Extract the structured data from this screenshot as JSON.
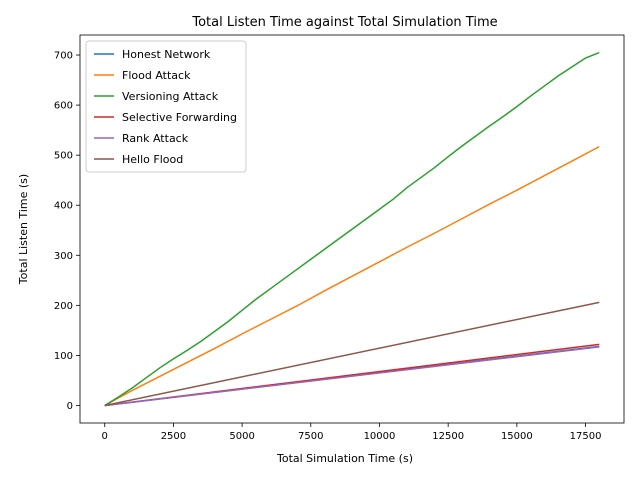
{
  "chart_data": {
    "type": "line",
    "title": "Total Listen Time against Total Simulation Time",
    "xlabel": "Total Simulation Time (s)",
    "ylabel": "Total Listen Time (s)",
    "xlim": [
      -900,
      18900
    ],
    "ylim": [
      -35,
      740
    ],
    "xticks": [
      0,
      2500,
      5000,
      7500,
      10000,
      12500,
      15000,
      17500
    ],
    "yticks": [
      0,
      100,
      200,
      300,
      400,
      500,
      600,
      700
    ],
    "legend_position": "top-left",
    "grid": false,
    "series": [
      {
        "name": "Honest Network",
        "color": "#1f77b4",
        "x": [
          0,
          18000
        ],
        "y": [
          0,
          118
        ]
      },
      {
        "name": "Flood Attack",
        "color": "#ff7f0e",
        "x": [
          0,
          500,
          1000,
          2000,
          3000,
          4000,
          5000,
          6000,
          7000,
          8000,
          9000,
          10000,
          11000,
          12000,
          13000,
          14000,
          15000,
          16000,
          17000,
          18000
        ],
        "y": [
          0,
          15,
          30,
          58,
          86,
          114,
          143,
          171,
          199,
          229,
          258,
          287,
          316,
          344,
          373,
          402,
          430,
          459,
          488,
          517
        ]
      },
      {
        "name": "Versioning Attack",
        "color": "#2ca02c",
        "x": [
          0,
          500,
          1000,
          1500,
          2000,
          2500,
          3000,
          3500,
          4000,
          4500,
          5000,
          5500,
          6000,
          6500,
          7000,
          7500,
          8000,
          8500,
          9000,
          9500,
          10000,
          10500,
          11000,
          11500,
          12000,
          12500,
          13000,
          13500,
          14000,
          14500,
          15000,
          15500,
          16000,
          16500,
          17000,
          17500,
          18000
        ],
        "y": [
          0,
          17,
          35,
          55,
          75,
          93,
          110,
          128,
          148,
          168,
          190,
          212,
          232,
          252,
          272,
          292,
          312,
          332,
          352,
          372,
          392,
          412,
          435,
          455,
          475,
          497,
          518,
          538,
          558,
          577,
          597,
          618,
          638,
          658,
          676,
          694,
          705
        ]
      },
      {
        "name": "Selective Forwarding",
        "color": "#d62728",
        "x": [
          0,
          18000
        ],
        "y": [
          0,
          122
        ]
      },
      {
        "name": "Rank Attack",
        "color": "#9467bd",
        "x": [
          0,
          18000
        ],
        "y": [
          0,
          117
        ]
      },
      {
        "name": "Hello Flood",
        "color": "#8c564b",
        "x": [
          0,
          18000
        ],
        "y": [
          0,
          206
        ]
      }
    ]
  }
}
